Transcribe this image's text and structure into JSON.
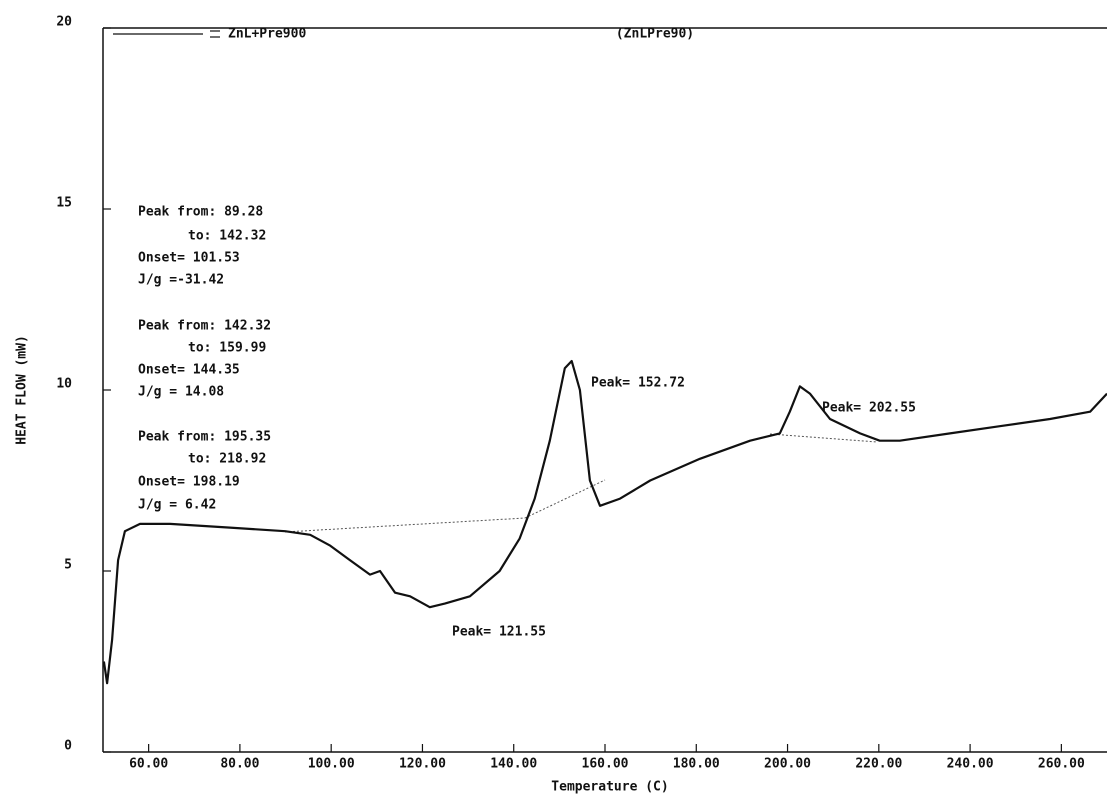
{
  "chart_data": {
    "type": "line",
    "title": "(ZnLPre90)",
    "xlabel": "Temperature (C)",
    "ylabel": "HEAT FLOW (mW)",
    "xlim": [
      50,
      270
    ],
    "ylim": [
      0,
      20
    ],
    "xticks": [
      {
        "value": 60,
        "label": "60.00"
      },
      {
        "value": 80,
        "label": "80.00"
      },
      {
        "value": 100,
        "label": "100.00"
      },
      {
        "value": 120,
        "label": "120.00"
      },
      {
        "value": 140,
        "label": "140.00"
      },
      {
        "value": 160,
        "label": "160.00"
      },
      {
        "value": 180,
        "label": "180.00"
      },
      {
        "value": 200,
        "label": "200.00"
      },
      {
        "value": 220,
        "label": "220.00"
      },
      {
        "value": 240,
        "label": "240.00"
      },
      {
        "value": 260,
        "label": "260.00"
      }
    ],
    "yticks": [
      0,
      5,
      10,
      15,
      20
    ],
    "x": [
      50.2,
      50.9,
      52.0,
      53.3,
      54.8,
      58.1,
      64.7,
      77.8,
      89.9,
      95.4,
      99.8,
      104.1,
      108.5,
      110.7,
      114.0,
      117.3,
      121.6,
      124.9,
      130.4,
      136.9,
      141.3,
      144.6,
      147.9,
      151.2,
      152.7,
      154.5,
      156.7,
      158.9,
      163.3,
      169.9,
      180.8,
      191.8,
      198.3,
      200.5,
      202.7,
      204.9,
      209.3,
      215.9,
      220.2,
      224.6,
      235.6,
      246.5,
      257.5,
      266.3,
      270.0
    ],
    "series": [
      {
        "name": "ZnL+Pre900",
        "color": "#111111",
        "values": [
          2.5,
          1.9,
          3.1,
          5.3,
          6.1,
          6.3,
          6.3,
          6.2,
          6.1,
          6.0,
          5.7,
          5.3,
          4.9,
          5.0,
          4.4,
          4.3,
          4.0,
          4.1,
          4.3,
          5.0,
          5.9,
          7.0,
          8.6,
          10.6,
          10.8,
          10.0,
          7.5,
          6.8,
          7.0,
          7.5,
          8.1,
          8.6,
          8.8,
          9.4,
          10.1,
          9.9,
          9.2,
          8.8,
          8.6,
          8.6,
          8.8,
          9.0,
          9.2,
          9.4,
          9.9
        ]
      }
    ],
    "annotations": [
      "Peak from: 89.28",
      "to: 142.32",
      "Onset= 101.53",
      "J/g =-31.42",
      "Peak from: 142.32",
      "to: 159.99",
      "Onset= 144.35",
      "J/g = 14.08",
      "Peak from: 195.35",
      "to: 218.92",
      "Onset= 198.19",
      "J/g = 6.42",
      "Peak= 152.72",
      "Peak= 202.55",
      "Peak= 121.55"
    ]
  }
}
